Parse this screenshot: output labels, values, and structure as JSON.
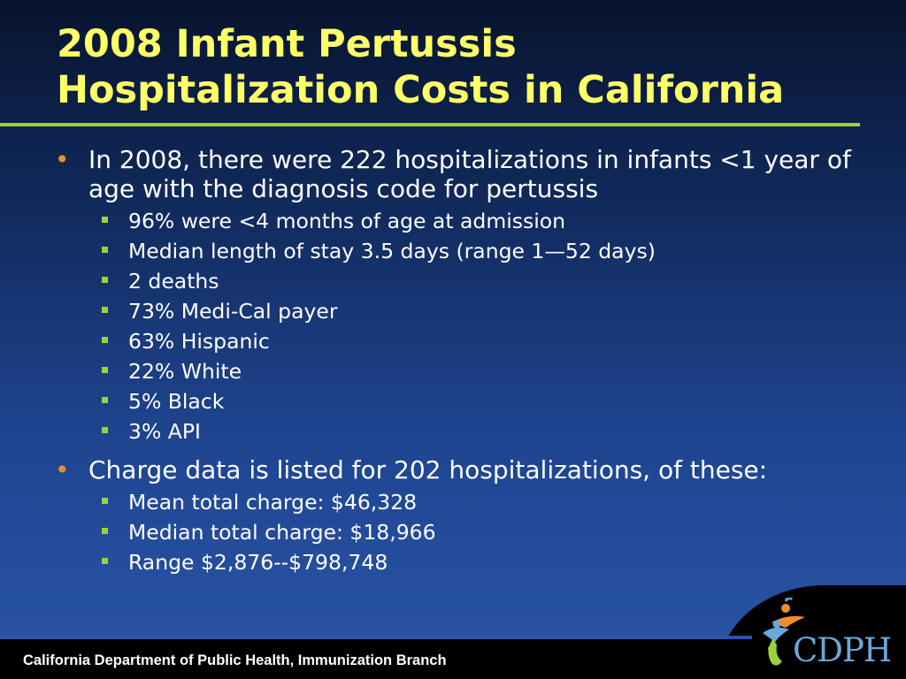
{
  "slide": {
    "title_line1": "2008 Infant Pertussis",
    "title_line2": "Hospitalization Costs in California",
    "bullets": [
      {
        "text": "In 2008, there were 222 hospitalizations in infants <1 year of age with the diagnosis code for pertussis",
        "sub_items": [
          "96% were <4 months of age at admission",
          "Median length of stay 3.5 days (range 1—52 days)",
          "2 deaths",
          "73% Medi-Cal payer",
          "63% Hispanic",
          "22% White",
          "5% Black",
          "3% API"
        ]
      },
      {
        "text": "Charge data is listed for 202 hospitalizations, of these:",
        "sub_items": [
          "Mean total charge: $46,328",
          "Median total charge: $18,966",
          "Range $2,876--$798,748"
        ]
      }
    ],
    "bullet_marker": "•"
  },
  "footer": {
    "organization": "California Department of Public Health, Immunization Branch",
    "logo_text": "CDPH"
  },
  "colors": {
    "title": "#ffff66",
    "rule": "#a5cd39",
    "bullet": "#f08c2e",
    "sub_bullet": "#9bd23c"
  },
  "icons": {
    "logo": "cdph-people-logo-icon"
  }
}
